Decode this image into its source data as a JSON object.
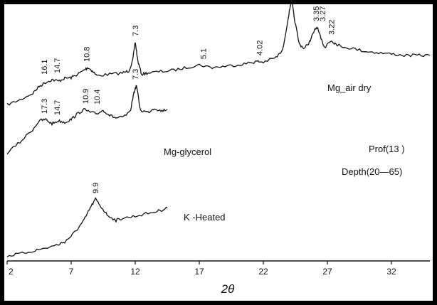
{
  "chart_data": {
    "type": "line",
    "xlabel": "2θ",
    "xlim": [
      2,
      35
    ],
    "x_ticks": [
      "2",
      "7",
      "12",
      "17",
      "22",
      "27",
      "32"
    ],
    "series": [
      {
        "name": "Mg-air dry",
        "label": "Mg_air dry",
        "points": [
          [
            2,
            0.05
          ],
          [
            3,
            0.12
          ],
          [
            4,
            0.22
          ],
          [
            4.5,
            0.32
          ],
          [
            5,
            0.38
          ],
          [
            5.5,
            0.42
          ],
          [
            6,
            0.4
          ],
          [
            6.5,
            0.44
          ],
          [
            7,
            0.45
          ],
          [
            7.5,
            0.5
          ],
          [
            8,
            0.56
          ],
          [
            8.3,
            0.6
          ],
          [
            8.6,
            0.56
          ],
          [
            9,
            0.48
          ],
          [
            10,
            0.5
          ],
          [
            11,
            0.52
          ],
          [
            11.5,
            0.55
          ],
          [
            11.8,
            0.7
          ],
          [
            12,
            0.98
          ],
          [
            12.2,
            0.7
          ],
          [
            12.5,
            0.5
          ],
          [
            13,
            0.52
          ],
          [
            14,
            0.54
          ],
          [
            15,
            0.56
          ],
          [
            16,
            0.6
          ],
          [
            17,
            0.64
          ],
          [
            18,
            0.6
          ],
          [
            19,
            0.62
          ],
          [
            20,
            0.64
          ],
          [
            21,
            0.67
          ],
          [
            21.5,
            0.69
          ],
          [
            22,
            0.68
          ],
          [
            23,
            0.75
          ],
          [
            23.5,
            0.85
          ],
          [
            24,
            1.4
          ],
          [
            24.2,
            1.62
          ],
          [
            24.4,
            1.35
          ],
          [
            24.8,
            0.95
          ],
          [
            25.2,
            0.88
          ],
          [
            25.6,
            0.98
          ],
          [
            26,
            1.15
          ],
          [
            26.2,
            1.2
          ],
          [
            26.5,
            1.02
          ],
          [
            26.8,
            0.9
          ],
          [
            27,
            0.95
          ],
          [
            27.3,
            1.0
          ],
          [
            27.6,
            0.96
          ],
          [
            28,
            0.92
          ],
          [
            29,
            0.88
          ],
          [
            30,
            0.84
          ],
          [
            31,
            0.82
          ],
          [
            32,
            0.8
          ],
          [
            33,
            0.78
          ],
          [
            34,
            0.78
          ],
          [
            35,
            0.78
          ]
        ],
        "peak_labels": [
          {
            "x": 4.9,
            "text": "16.1"
          },
          {
            "x": 5.9,
            "text": "14.7"
          },
          {
            "x": 8.2,
            "text": "10.8"
          },
          {
            "x": 12.0,
            "text": "7.3"
          },
          {
            "x": 17.3,
            "text": "5.1"
          },
          {
            "x": 21.7,
            "text": "4.02"
          },
          {
            "x": 23.8,
            "text": "3.59"
          },
          {
            "x": 26.1,
            "text": "3.35"
          },
          {
            "x": 26.6,
            "text": "3.27"
          },
          {
            "x": 27.3,
            "text": "3.22"
          }
        ]
      },
      {
        "name": "Mg-glycerol",
        "label": "Mg-glycerol",
        "points": [
          [
            2,
            0.05
          ],
          [
            3,
            0.2
          ],
          [
            4,
            0.38
          ],
          [
            4.5,
            0.5
          ],
          [
            5,
            0.52
          ],
          [
            5.5,
            0.46
          ],
          [
            6,
            0.5
          ],
          [
            6.5,
            0.48
          ],
          [
            7,
            0.52
          ],
          [
            7.5,
            0.6
          ],
          [
            8,
            0.66
          ],
          [
            8.5,
            0.62
          ],
          [
            9,
            0.6
          ],
          [
            9.5,
            0.65
          ],
          [
            10,
            0.58
          ],
          [
            10.5,
            0.54
          ],
          [
            11,
            0.55
          ],
          [
            11.6,
            0.62
          ],
          [
            11.9,
            0.9
          ],
          [
            12.1,
            1.0
          ],
          [
            12.4,
            0.65
          ],
          [
            13,
            0.62
          ],
          [
            13.5,
            0.68
          ],
          [
            14,
            0.64
          ],
          [
            14.5,
            0.66
          ]
        ],
        "peak_labels": [
          {
            "x": 4.9,
            "text": "17.3"
          },
          {
            "x": 5.9,
            "text": "14.7"
          },
          {
            "x": 8.1,
            "text": "10.9"
          },
          {
            "x": 9.0,
            "text": "10.4"
          },
          {
            "x": 12.0,
            "text": "7.3"
          }
        ]
      },
      {
        "name": "K-Heated",
        "label": "K -Heated",
        "points": [
          [
            2,
            0.02
          ],
          [
            3,
            0.05
          ],
          [
            4,
            0.09
          ],
          [
            5,
            0.13
          ],
          [
            6,
            0.18
          ],
          [
            6.5,
            0.22
          ],
          [
            7,
            0.3
          ],
          [
            7.5,
            0.4
          ],
          [
            8,
            0.52
          ],
          [
            8.5,
            0.7
          ],
          [
            8.9,
            0.82
          ],
          [
            9.3,
            0.72
          ],
          [
            9.8,
            0.6
          ],
          [
            10.5,
            0.52
          ],
          [
            11,
            0.55
          ],
          [
            12,
            0.58
          ],
          [
            13,
            0.62
          ],
          [
            14,
            0.66
          ],
          [
            14.5,
            0.7
          ]
        ],
        "peak_labels": [
          {
            "x": 8.9,
            "text": "9.9"
          }
        ]
      }
    ],
    "annotations": [
      "Prof(13 )",
      "Depth(20—65)"
    ],
    "grid": false
  }
}
